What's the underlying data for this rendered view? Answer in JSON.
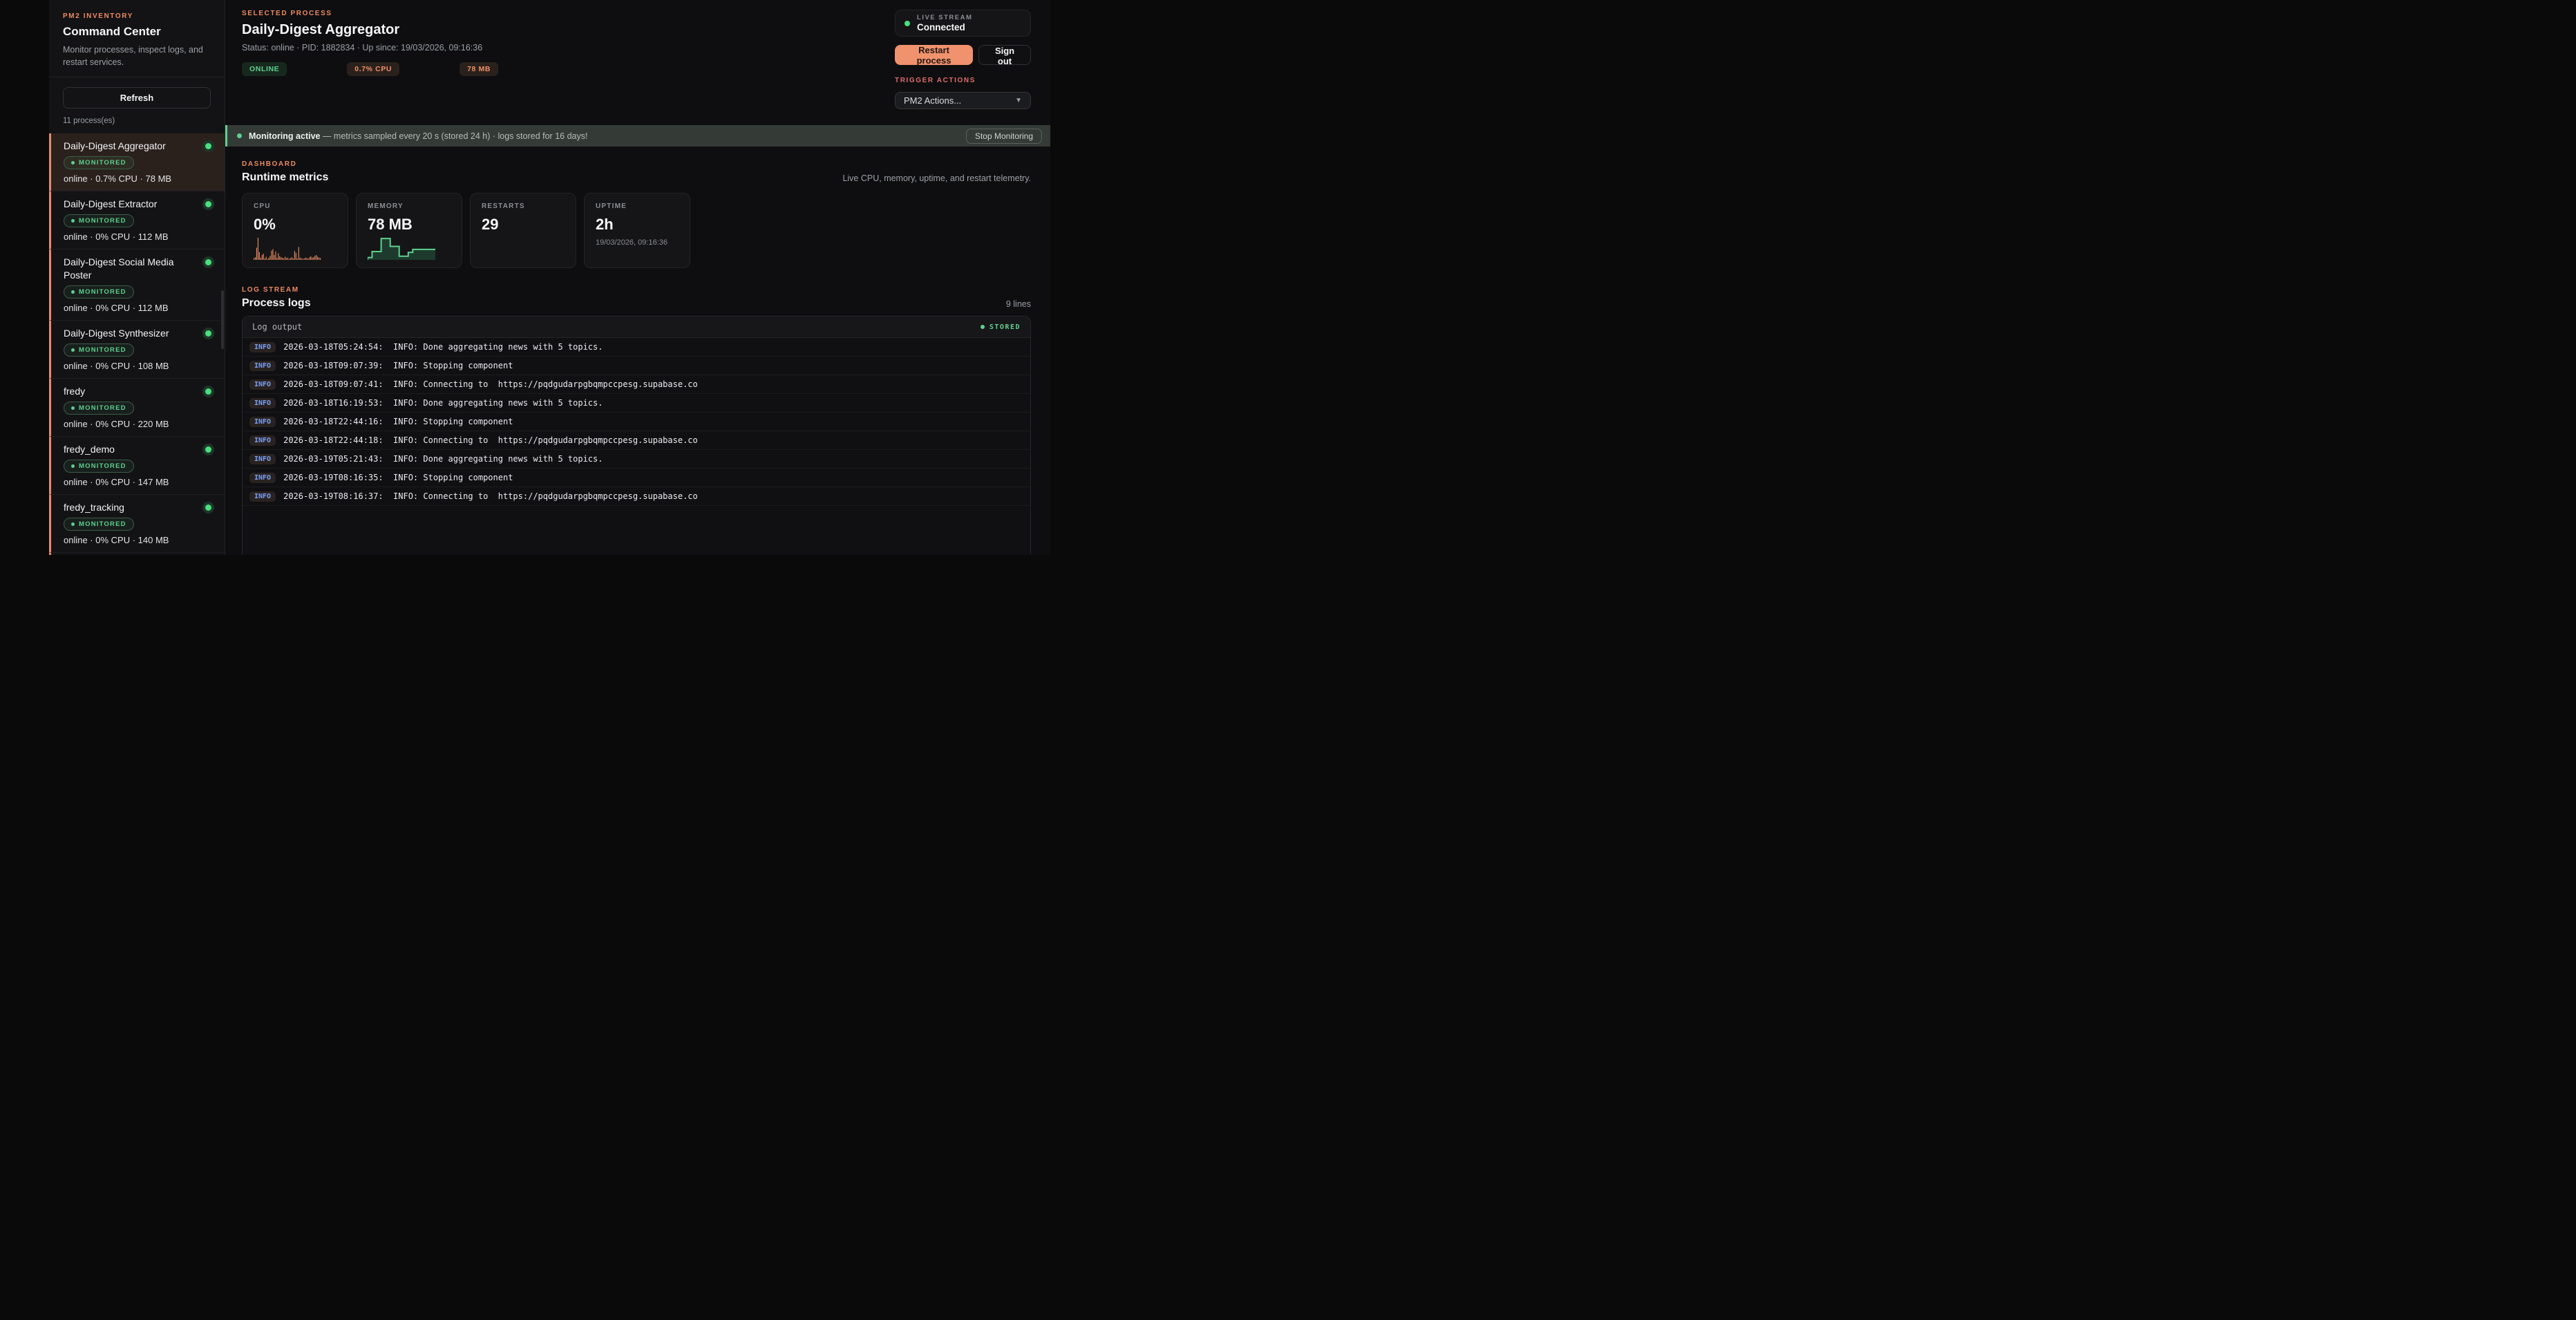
{
  "colors": {
    "accent_orange": "#ec8a61",
    "accent_green": "#5fd08f",
    "accent_red": "#e06c6c",
    "info_blue": "#7aa2f7"
  },
  "sidebar": {
    "label": "PM2 INVENTORY",
    "title": "Command Center",
    "description": "Monitor processes, inspect logs, and restart services.",
    "refresh_label": "Refresh",
    "count_text": "11 process(es)",
    "monitored_label": "MONITORED",
    "processes": [
      {
        "name": "Daily-Digest Aggregator",
        "badge": "MONITORED",
        "status": "online · 0.7% CPU · 78 MB",
        "selected": true
      },
      {
        "name": "Daily-Digest Extractor",
        "badge": "MONITORED",
        "status": "online · 0% CPU · 112 MB",
        "selected": false
      },
      {
        "name": "Daily-Digest Social Media Poster",
        "badge": "MONITORED",
        "status": "online · 0% CPU · 112 MB",
        "selected": false
      },
      {
        "name": "Daily-Digest Synthesizer",
        "badge": "MONITORED",
        "status": "online · 0% CPU · 108 MB",
        "selected": false
      },
      {
        "name": "fredy",
        "badge": "MONITORED",
        "status": "online · 0% CPU · 220 MB",
        "selected": false
      },
      {
        "name": "fredy_demo",
        "badge": "MONITORED",
        "status": "online · 0% CPU · 147 MB",
        "selected": false
      },
      {
        "name": "fredy_tracking",
        "badge": "MONITORED",
        "status": "online · 0% CPU · 140 MB",
        "selected": false
      }
    ]
  },
  "header": {
    "label": "SELECTED PROCESS",
    "title": "Daily-Digest Aggregator",
    "subtitle": "Status: online · PID: 1882834 · Up since: 19/03/2026, 09:16:36",
    "badges": [
      {
        "text": "ONLINE",
        "type": "green"
      },
      {
        "text": "0.7% CPU",
        "type": "orange"
      },
      {
        "text": "78 MB",
        "type": "orange"
      }
    ],
    "live_stream": {
      "label": "LIVE STREAM",
      "value": "Connected"
    },
    "restart_label": "Restart process",
    "signout_label": "Sign out",
    "trigger_label": "TRIGGER ACTIONS",
    "actions_dropdown": "PM2 Actions..."
  },
  "banner": {
    "bold": "Monitoring active",
    "text": " — metrics sampled every 20 s (stored 24 h) · logs stored for 16 days!",
    "button": "Stop Monitoring"
  },
  "dashboard": {
    "label": "DASHBOARD",
    "title": "Runtime metrics",
    "caption": "Live CPU, memory, uptime, and restart telemetry.",
    "cards": [
      {
        "label": "CPU",
        "value": "0%",
        "sub": "",
        "spark": 0
      },
      {
        "label": "MEMORY",
        "value": "78 MB",
        "sub": "",
        "spark": 1
      },
      {
        "label": "RESTARTS",
        "value": "29",
        "sub": "",
        "spark": null
      },
      {
        "label": "UPTIME",
        "value": "2h",
        "sub": "19/03/2026, 09:16:36",
        "spark": null
      }
    ]
  },
  "chart_data": [
    {
      "type": "bar",
      "title": "CPU sparkline",
      "color": "#ef8f63",
      "ylim": [
        0,
        100
      ],
      "values": [
        8,
        12,
        55,
        100,
        35,
        10,
        22,
        28,
        6,
        14,
        4,
        10,
        18,
        42,
        48,
        22,
        38,
        8,
        30,
        16,
        12,
        10,
        6,
        14,
        8,
        10,
        4,
        8,
        12,
        6,
        40,
        32,
        6,
        58,
        10,
        8,
        4,
        6,
        10,
        8,
        6,
        12,
        16,
        10,
        12,
        18,
        22,
        14,
        10,
        8
      ]
    },
    {
      "type": "area",
      "title": "Memory sparkline",
      "color": "#5fd08f",
      "fill": "#1e3a2d",
      "ylim": [
        0,
        100
      ],
      "values": [
        6,
        34,
        34,
        95,
        95,
        58,
        58,
        12,
        12,
        30,
        44,
        44,
        44,
        44,
        44
      ]
    }
  ],
  "logs": {
    "label": "LOG STREAM",
    "title": "Process logs",
    "count": "9 lines",
    "panel_title": "Log output",
    "stored_badge": "STORED",
    "entries": [
      {
        "level": "INFO",
        "text": "2026-03-18T05:24:54:  INFO: Done aggregating news with 5 topics."
      },
      {
        "level": "INFO",
        "text": "2026-03-18T09:07:39:  INFO: Stopping component"
      },
      {
        "level": "INFO",
        "text": "2026-03-18T09:07:41:  INFO: Connecting to  https://pqdgudarpgbqmpccpesg.supabase.co"
      },
      {
        "level": "INFO",
        "text": "2026-03-18T16:19:53:  INFO: Done aggregating news with 5 topics."
      },
      {
        "level": "INFO",
        "text": "2026-03-18T22:44:16:  INFO: Stopping component"
      },
      {
        "level": "INFO",
        "text": "2026-03-18T22:44:18:  INFO: Connecting to  https://pqdgudarpgbqmpccpesg.supabase.co"
      },
      {
        "level": "INFO",
        "text": "2026-03-19T05:21:43:  INFO: Done aggregating news with 5 topics."
      },
      {
        "level": "INFO",
        "text": "2026-03-19T08:16:35:  INFO: Stopping component"
      },
      {
        "level": "INFO",
        "text": "2026-03-19T08:16:37:  INFO: Connecting to  https://pqdgudarpgbqmpccpesg.supabase.co"
      }
    ]
  }
}
